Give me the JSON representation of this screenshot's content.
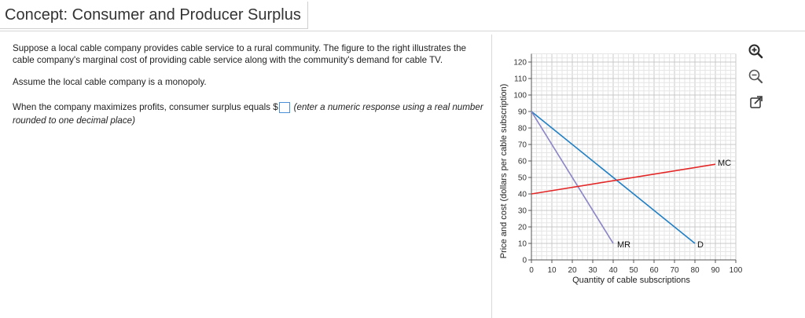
{
  "header": {
    "title": "Concept: Consumer and Producer Surplus"
  },
  "question": {
    "paragraph1": "Suppose a local cable company provides cable service to a rural community.  The figure to the right illustrates the cable company's marginal cost of providing cable service along with the community's demand for cable TV.",
    "paragraph2": "Assume the local cable company is a monopoly.",
    "prompt": "When the company maximizes profits, consumer surplus equals $",
    "answer_value": "",
    "hint": "(enter a numeric response using a real number rounded to one decimal place)"
  },
  "chart_data": {
    "type": "line",
    "xlabel": "Quantity of cable subscriptions",
    "ylabel": "Price and cost (dollars per cable subscription)",
    "xlim": [
      0,
      100
    ],
    "ylim": [
      0,
      125
    ],
    "x_ticks": [
      "0",
      "10",
      "20",
      "30",
      "40",
      "50",
      "60",
      "70",
      "80",
      "90",
      "100"
    ],
    "y_ticks": [
      "0",
      "10",
      "20",
      "30",
      "40",
      "50",
      "60",
      "70",
      "80",
      "90",
      "100",
      "110",
      "120"
    ],
    "grid": true,
    "series": [
      {
        "name": "D",
        "color": "#1f7fc4",
        "x": [
          0,
          80
        ],
        "y": [
          90,
          10
        ]
      },
      {
        "name": "MR",
        "color": "#8a84c8",
        "x": [
          0,
          40
        ],
        "y": [
          90,
          10
        ]
      },
      {
        "name": "MC",
        "color": "#e32626",
        "x": [
          0,
          90
        ],
        "y": [
          40,
          58
        ]
      }
    ]
  },
  "toolbar": {
    "icons": [
      "zoom-in-icon",
      "zoom-out-icon",
      "popout-icon"
    ]
  }
}
